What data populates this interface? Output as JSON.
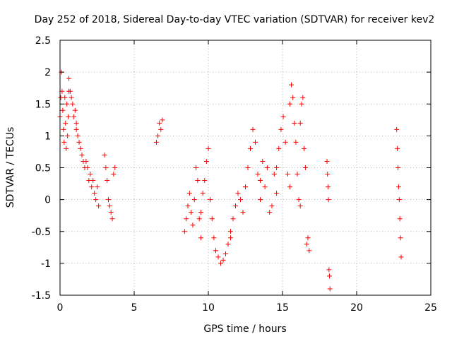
{
  "chart_data": {
    "type": "scatter",
    "title": "Day 252 of 2018, Sidereal Day-to-day VTEC variation (SDTVAR) for receiver kev2",
    "xlabel": "GPS time / hours",
    "ylabel": "SDTVAR / TECUs",
    "xlim": [
      0,
      25
    ],
    "ylim": [
      -1.5,
      2.5
    ],
    "xticks": [
      0,
      5,
      10,
      15,
      20,
      25
    ],
    "yticks": [
      -1.5,
      -1,
      -0.5,
      0,
      0.5,
      1,
      1.5,
      2,
      2.5
    ],
    "marker": "+",
    "color": "#ff0000",
    "grid": true,
    "segments": [
      {
        "x0": 0.0,
        "x1": 0.6,
        "y": [
          1.3,
          1.6,
          2.0,
          1.7,
          1.4,
          1.1,
          0.9,
          1.6,
          1.2,
          0.8,
          1.5,
          1.0,
          1.3,
          1.7
        ]
      },
      {
        "x0": 0.6,
        "x1": 1.1,
        "y": [
          1.9,
          1.7,
          1.6,
          1.5,
          1.3,
          1.4,
          1.2
        ]
      },
      {
        "x0": 1.1,
        "x1": 2.6,
        "y": [
          1.1,
          1.0,
          0.9,
          0.8,
          0.7,
          0.6,
          0.5,
          0.6,
          0.5,
          0.3,
          0.4,
          0.2,
          0.3,
          0.1,
          0.0,
          0.2,
          -0.1
        ]
      },
      {
        "x0": 3.0,
        "x1": 3.7,
        "y": [
          0.7,
          0.5,
          0.3,
          0.0,
          -0.1,
          -0.2,
          -0.3,
          0.4,
          0.5
        ]
      },
      {
        "x0": 6.5,
        "x1": 6.9,
        "y": [
          0.9,
          1.0,
          1.2,
          1.1,
          1.25
        ]
      },
      {
        "x0": 8.4,
        "x1": 9.5,
        "y": [
          -0.5,
          -0.3,
          -0.1,
          0.1,
          -0.2,
          -0.4,
          0.0,
          0.5,
          0.3,
          -0.3,
          -0.6
        ]
      },
      {
        "x0": 9.5,
        "x1": 10.5,
        "y": [
          -0.2,
          0.1,
          0.3,
          0.6,
          0.8,
          0.0,
          -0.3,
          -0.6,
          -0.8
        ]
      },
      {
        "x0": 10.5,
        "x1": 11.5,
        "y": [
          -0.8,
          -0.9,
          -1.0,
          -0.95,
          -0.85,
          -0.7,
          -0.6
        ]
      },
      {
        "x0": 11.5,
        "x1": 12.5,
        "y": [
          -0.5,
          -0.3,
          -0.1,
          0.1,
          0.0,
          -0.2,
          0.2
        ]
      },
      {
        "x0": 12.5,
        "x1": 13.5,
        "y": [
          0.2,
          0.5,
          0.8,
          1.1,
          0.9,
          0.4,
          0.0
        ]
      },
      {
        "x0": 13.5,
        "x1": 14.6,
        "y": [
          0.3,
          0.6,
          0.2,
          0.5,
          -0.2,
          -0.1,
          0.4,
          0.1
        ]
      },
      {
        "x0": 14.6,
        "x1": 15.5,
        "y": [
          0.5,
          0.8,
          1.1,
          1.3,
          0.9,
          0.4,
          0.2
        ]
      },
      {
        "x0": 15.5,
        "x1": 16.2,
        "y": [
          1.5,
          1.8,
          1.6,
          1.2,
          0.9,
          0.4,
          0.0,
          -0.1
        ]
      },
      {
        "x0": 16.2,
        "x1": 16.8,
        "y": [
          1.2,
          1.5,
          1.6,
          0.8,
          0.5,
          -0.7,
          -0.6,
          -0.8
        ]
      },
      {
        "x0": 18.0,
        "x1": 18.2,
        "y": [
          0.6,
          0.4,
          0.2,
          0.0,
          -1.1,
          -1.2,
          -1.4
        ]
      },
      {
        "x0": 22.7,
        "x1": 23.0,
        "y": [
          1.1,
          0.8,
          0.5,
          0.2,
          0.0,
          -0.3,
          -0.6,
          -0.9
        ]
      }
    ]
  }
}
